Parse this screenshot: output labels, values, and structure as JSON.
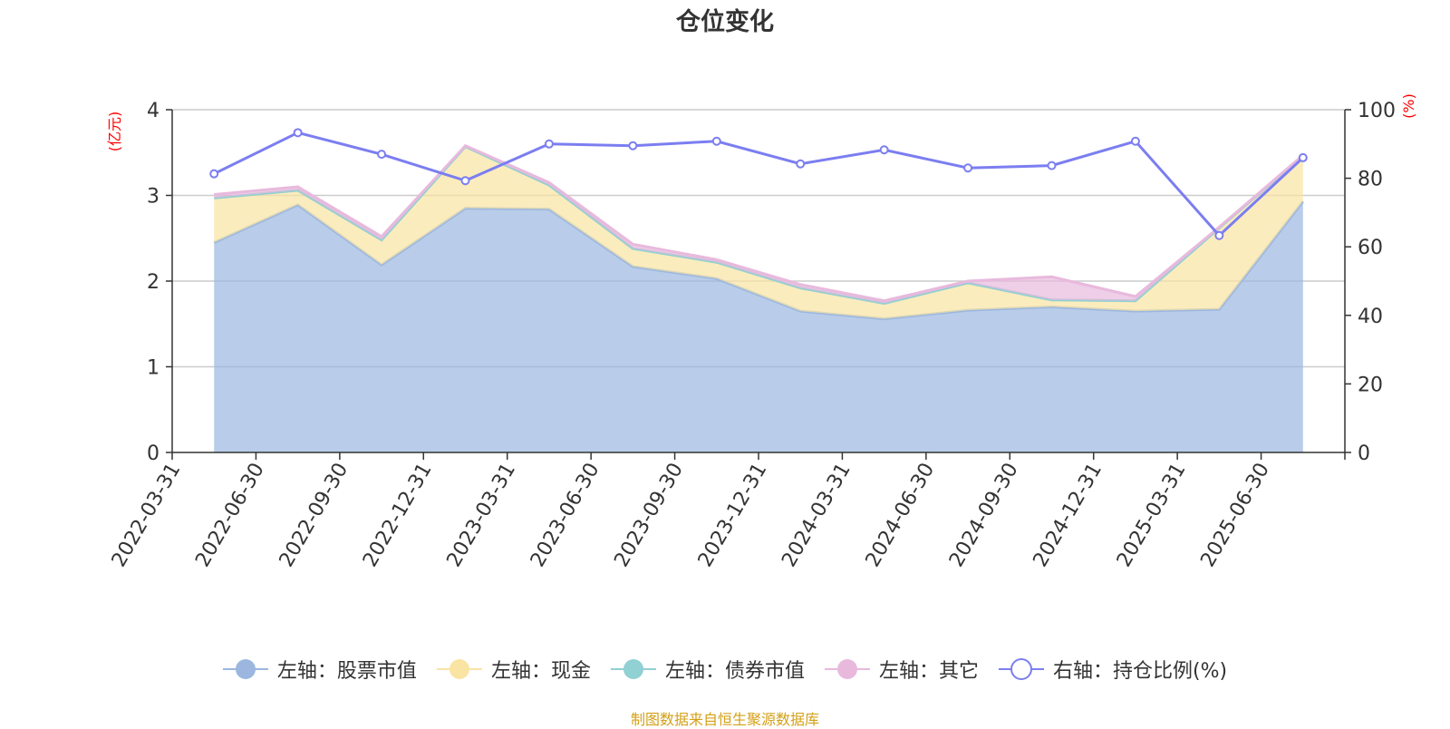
{
  "chart_data": {
    "type": "area",
    "title": "仓位变化",
    "y_left_unit": "(亿元)",
    "y_right_unit": "(%)",
    "y_left_range": [
      0,
      4
    ],
    "y_left_ticks": [
      "0",
      "1",
      "2",
      "3",
      "4"
    ],
    "y_right_range": [
      0,
      100
    ],
    "y_right_ticks": [
      "0",
      "20",
      "40",
      "60",
      "80",
      "100"
    ],
    "categories": [
      "2022-03-31",
      "2022-06-30",
      "2022-09-30",
      "2022-12-31",
      "2023-03-31",
      "2023-06-30",
      "2023-09-30",
      "2023-12-31",
      "2024-03-31",
      "2024-06-30",
      "2024-09-30",
      "2024-12-31",
      "2025-03-31",
      "2025-06-30"
    ],
    "series": [
      {
        "name": "左轴：股票市值",
        "axis": "left",
        "kind": "stacked-area",
        "color": "#9bb7e0",
        "values": [
          2.45,
          2.89,
          2.19,
          2.85,
          2.84,
          2.17,
          2.03,
          1.65,
          1.56,
          1.66,
          1.7,
          1.65,
          1.67,
          2.93
        ]
      },
      {
        "name": "左轴：现金",
        "axis": "left",
        "kind": "stacked-area",
        "color": "#fae4a3",
        "values": [
          0.52,
          0.17,
          0.29,
          0.72,
          0.28,
          0.21,
          0.19,
          0.27,
          0.18,
          0.32,
          0.08,
          0.12,
          0.95,
          0.53
        ]
      },
      {
        "name": "左轴：债券市值",
        "axis": "left",
        "kind": "stacked-area",
        "color": "#91d0d3",
        "values": [
          0,
          0,
          0,
          0,
          0,
          0,
          0,
          0,
          0,
          0,
          0,
          0,
          0,
          0
        ]
      },
      {
        "name": "左轴：其它",
        "axis": "left",
        "kind": "stacked-area",
        "color": "#e8b9dd",
        "values": [
          0.04,
          0.04,
          0.04,
          0.01,
          0.03,
          0.05,
          0.03,
          0.04,
          0.03,
          0.02,
          0.27,
          0.05,
          0.01,
          0.01
        ]
      },
      {
        "name": "右轴：持仓比例(%)",
        "axis": "right",
        "kind": "line",
        "color": "#7b7ef0",
        "values": [
          81.3,
          93.3,
          87.0,
          79.3,
          90.0,
          89.5,
          90.8,
          84.2,
          88.3,
          83.0,
          83.7,
          90.8,
          63.3,
          86.0
        ]
      }
    ],
    "grid": true,
    "legend_position": "bottom"
  },
  "source_note": "制图数据来自恒生聚源数据库",
  "colors": {
    "axis": "#333333",
    "grid": "#cccccc",
    "unit_label": "#ff0000",
    "source_note": "#d4a017"
  }
}
